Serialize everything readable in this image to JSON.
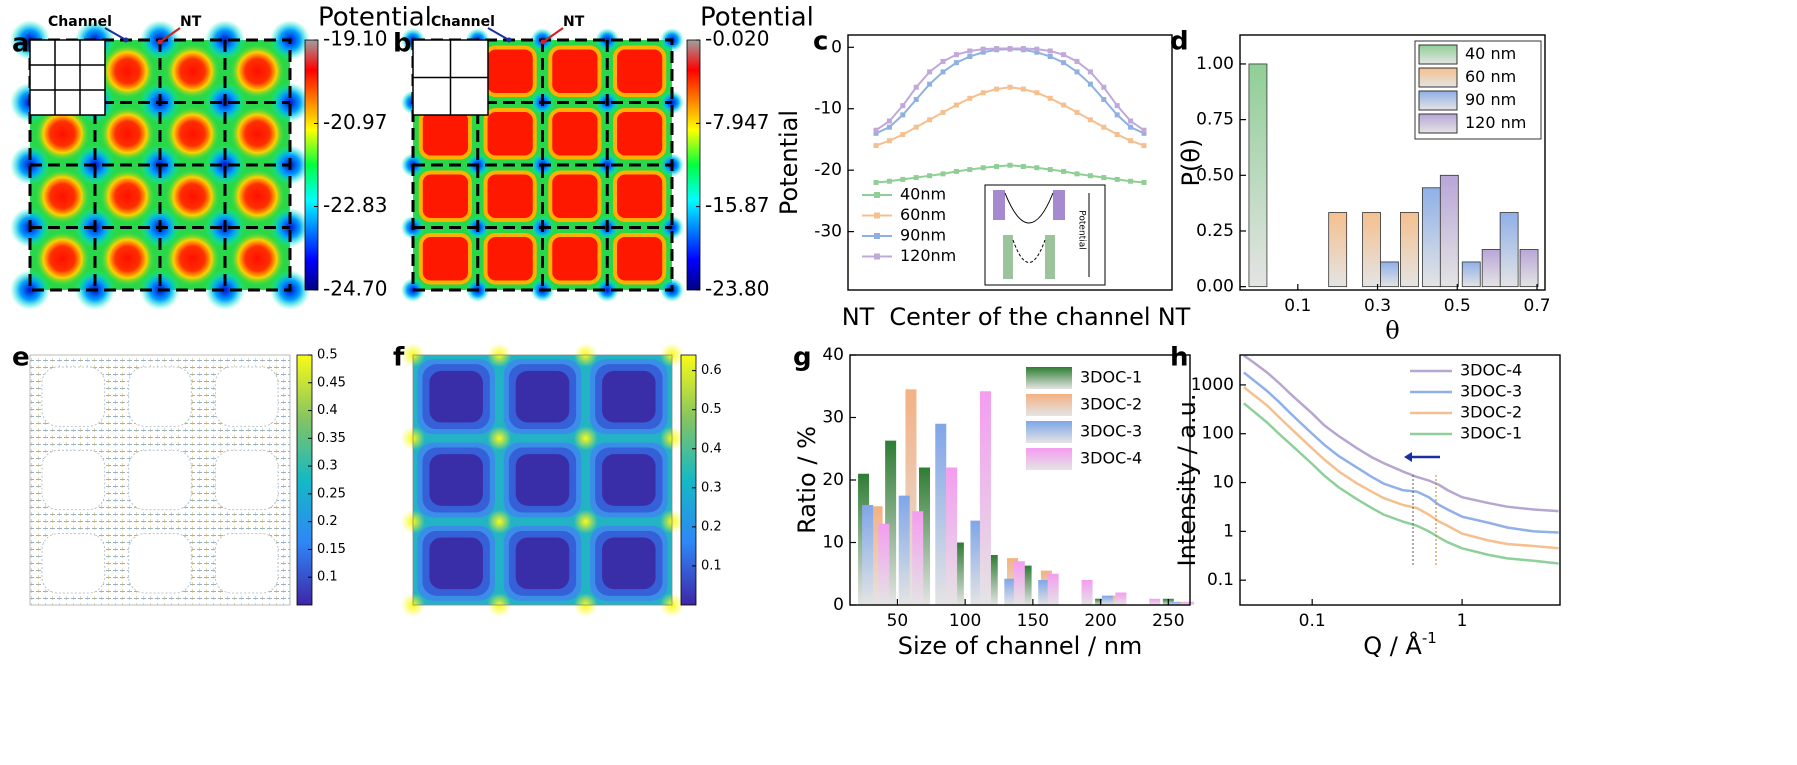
{
  "chart_data": [
    {
      "type": "heatmap",
      "panel": "a",
      "colorbar_label": "Potential",
      "colormap": "jet",
      "cell_shape": "circle",
      "annotations": [
        {
          "text": "Channel",
          "color": "#1a2fa0"
        },
        {
          "text": "NT",
          "color": "#d42020"
        }
      ],
      "zlim": [
        -24.7,
        -19.1
      ],
      "zticks": [
        {
          "value": -19.1,
          "label": "-19.10"
        },
        -20.97,
        -22.83,
        {
          "value": -24.7,
          "label": "-24.70"
        }
      ]
    },
    {
      "type": "heatmap",
      "panel": "b",
      "colorbar_label": "Potential",
      "colormap": "jet",
      "cell_shape": "square",
      "annotations": [
        {
          "text": "Channel",
          "color": "#1a2fa0"
        },
        {
          "text": "NT",
          "color": "#d42020"
        }
      ],
      "zlim": [
        -23.8,
        -0.02
      ],
      "zticks": [
        {
          "value": -0.02,
          "label": "-0.020"
        },
        -7.947,
        -15.87,
        {
          "value": -23.8,
          "label": "-23.80"
        }
      ]
    },
    {
      "type": "line",
      "panel": "c",
      "ylabel": "Potential",
      "xlabels": [
        "NT",
        "Center of the channel",
        "NT"
      ],
      "inset_label": "Potential",
      "ylim": [
        -39.5,
        2
      ],
      "yticks": [
        0,
        -10,
        -20,
        -30
      ],
      "legend": "lower left",
      "series": [
        {
          "name": "40nm",
          "color": "#8fcf95",
          "values": [
            -22,
            -21.8,
            -21.5,
            -21.2,
            -20.9,
            -20.6,
            -20.2,
            -19.9,
            -19.6,
            -19.4,
            -19.2,
            -19.4,
            -19.6,
            -19.9,
            -20.2,
            -20.6,
            -20.9,
            -21.2,
            -21.5,
            -21.8,
            -22
          ]
        },
        {
          "name": "60nm",
          "color": "#f5c08f",
          "values": [
            -16,
            -15.2,
            -14.2,
            -13,
            -11.8,
            -10.6,
            -9.4,
            -8.3,
            -7.4,
            -6.8,
            -6.5,
            -6.8,
            -7.4,
            -8.3,
            -9.4,
            -10.6,
            -11.8,
            -13,
            -14.2,
            -15.2,
            -16
          ]
        },
        {
          "name": "90nm",
          "color": "#8fb0e0",
          "values": [
            -14,
            -13,
            -11,
            -8.5,
            -6,
            -4,
            -2.5,
            -1.5,
            -0.8,
            -0.4,
            -0.3,
            -0.4,
            -0.8,
            -1.5,
            -2.5,
            -4,
            -6,
            -8.5,
            -11,
            -13,
            -14
          ]
        },
        {
          "name": "120nm",
          "color": "#c0a8d8",
          "values": [
            -13.5,
            -12,
            -9.5,
            -6.5,
            -4,
            -2.3,
            -1.2,
            -0.6,
            -0.3,
            -0.2,
            -0.2,
            -0.2,
            -0.3,
            -0.6,
            -1.2,
            -2.3,
            -4,
            -6.5,
            -9.5,
            -12,
            -13.5
          ]
        }
      ]
    },
    {
      "type": "bar",
      "panel": "d",
      "ylabel": "P(θ)",
      "xlabel": "θ",
      "xlim": [
        -0.045,
        0.72
      ],
      "ylim": [
        -0.015,
        1.13
      ],
      "xticks": [
        0.1,
        0.3,
        0.5,
        0.7
      ],
      "yticks": [
        {
          "value": 0,
          "label": "0.00"
        },
        0.25,
        {
          "value": 0.5,
          "label": "0.50"
        },
        0.75,
        {
          "value": 1,
          "label": "1.00"
        }
      ],
      "legend": "upper right",
      "legend_box": true,
      "series": [
        {
          "name": "40 nm",
          "color": "#8fcf95",
          "x": [
            0
          ],
          "values": [
            1.0
          ]
        },
        {
          "name": "60 nm",
          "color": "#f5c08f",
          "x": [
            0.2,
            0.285,
            0.38
          ],
          "values": [
            0.333,
            0.333,
            0.333
          ]
        },
        {
          "name": "90 nm",
          "color": "#8fb0e8",
          "x": [
            0.33,
            0.435,
            0.535,
            0.63
          ],
          "values": [
            0.111,
            0.444,
            0.111,
            0.333
          ]
        },
        {
          "name": "120 nm",
          "color": "#b8a6d8",
          "x": [
            0.48,
            0.585,
            0.68
          ],
          "values": [
            0.5,
            0.167,
            0.167
          ]
        }
      ]
    },
    {
      "type": "quiver",
      "panel": "e",
      "colormap": "parula",
      "zlim": [
        0.05,
        0.5
      ],
      "zticks": [
        0.5,
        0.45,
        0.4,
        0.35,
        0.3,
        0.25,
        0.2,
        0.15,
        0.1
      ]
    },
    {
      "type": "heatmap",
      "panel": "f",
      "colormap": "parula",
      "cell_shape": "square",
      "zlim": [
        0,
        0.64
      ],
      "zticks": [
        0.6,
        0.5,
        0.4,
        0.3,
        0.2,
        0.1
      ]
    },
    {
      "type": "bar",
      "panel": "g",
      "ylabel": "Ratio / %",
      "xlabel": "Size of channel / nm",
      "xlim": [
        15,
        266
      ],
      "ylim": [
        0,
        40
      ],
      "xticks": [
        50,
        100,
        150,
        200,
        250
      ],
      "yticks": [
        0,
        10,
        20,
        30,
        40
      ],
      "legend": "upper right",
      "legend_box": false,
      "series": [
        {
          "name": "3DOC-1",
          "color": "#2e7d32",
          "x": [
            25,
            45,
            70,
            95,
            120,
            145,
            200,
            250
          ],
          "values": [
            21,
            26.3,
            22,
            10,
            8,
            6.3,
            1,
            1
          ]
        },
        {
          "name": "3DOC-2",
          "color": "#f4b183",
          "x": [
            35,
            60,
            85,
            110,
            135,
            160,
            210,
            260
          ],
          "values": [
            15.8,
            34.5,
            18,
            11.5,
            7.5,
            5.5,
            1.5,
            0.5
          ]
        },
        {
          "name": "3DOC-3",
          "color": "#7fa6e8",
          "x": [
            28,
            55,
            82,
            108,
            133,
            158,
            205,
            255
          ],
          "values": [
            16,
            17.5,
            29,
            13.5,
            4.2,
            4,
            1.5,
            0.5
          ]
        },
        {
          "name": "3DOC-4",
          "color": "#f49cf0",
          "x": [
            40,
            65,
            90,
            115,
            140,
            165,
            190,
            215,
            240,
            265
          ],
          "values": [
            13,
            15,
            22,
            34.2,
            7,
            5,
            4,
            2,
            1,
            0.5
          ]
        }
      ]
    },
    {
      "type": "logline",
      "panel": "h",
      "ylabel": "Intensity / a.u.",
      "xlabel": "Q / Å",
      "xlabel_sup": "-1",
      "xscale": "log",
      "yscale": "log",
      "xlim": [
        0.033,
        4.5
      ],
      "ylim": [
        0.031,
        4100
      ],
      "xticks": [
        0.1,
        1
      ],
      "yticks": [
        0.1,
        1,
        10,
        100,
        1000
      ],
      "legend": "upper right",
      "x": [
        0.035,
        0.04,
        0.05,
        0.06,
        0.07,
        0.08,
        0.1,
        0.12,
        0.15,
        0.2,
        0.25,
        0.3,
        0.4,
        0.5,
        0.6,
        0.7,
        0.8,
        1,
        1.5,
        2,
        3,
        4.4
      ],
      "series": [
        {
          "name": "3DOC-4",
          "color": "#b8a6d0",
          "values": [
            4000,
            3000,
            1800,
            1100,
            700,
            480,
            260,
            150,
            90,
            50,
            33,
            25,
            17,
            13,
            11,
            9,
            7,
            5,
            3.8,
            3.2,
            2.8,
            2.6
          ]
        },
        {
          "name": "3DOC-3",
          "color": "#8fb0e8",
          "values": [
            1800,
            1300,
            750,
            450,
            280,
            190,
            100,
            60,
            35,
            20,
            13,
            9.5,
            7,
            6.5,
            5,
            3.5,
            2.8,
            2,
            1.5,
            1.2,
            1,
            0.95
          ]
        },
        {
          "name": "3DOC-2",
          "color": "#f5c08f",
          "values": [
            900,
            650,
            380,
            220,
            140,
            95,
            50,
            30,
            17,
            9.5,
            6.5,
            4.8,
            3.5,
            3,
            2.2,
            1.6,
            1.3,
            0.9,
            0.65,
            0.55,
            0.5,
            0.45
          ]
        },
        {
          "name": "3DOC-1",
          "color": "#8fd09a",
          "values": [
            420,
            300,
            170,
            100,
            65,
            45,
            24,
            14,
            8,
            4.5,
            3,
            2.2,
            1.6,
            1.3,
            1,
            0.75,
            0.6,
            0.45,
            0.33,
            0.28,
            0.25,
            0.22
          ]
        }
      ]
    }
  ]
}
